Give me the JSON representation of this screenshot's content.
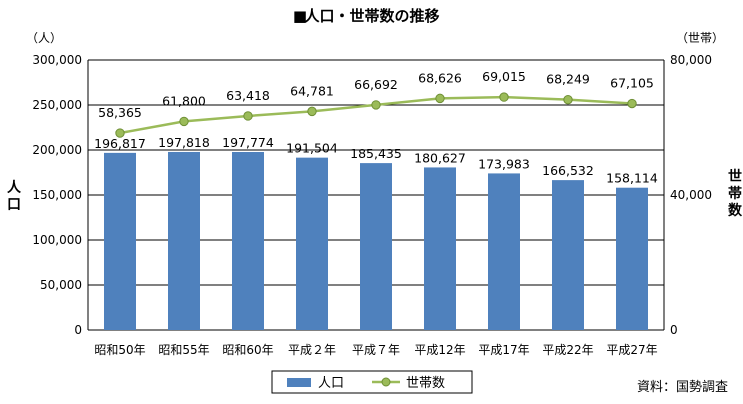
{
  "chart_data": {
    "type": "bar",
    "title_marker": "■",
    "title": "人口・世帯数の推移",
    "categories": [
      "昭和50年",
      "昭和55年",
      "昭和60年",
      "平成２年",
      "平成７年",
      "平成12年",
      "平成17年",
      "平成22年",
      "平成27年"
    ],
    "left_axis": {
      "unit": "（人）",
      "label": "人口",
      "ylim": [
        0,
        300000
      ],
      "ticks": [
        "0",
        "50,000",
        "100,000",
        "150,000",
        "200,000",
        "250,000",
        "300,000"
      ]
    },
    "right_axis": {
      "unit": "（世帯）",
      "label": "世帯数",
      "ylim": [
        0,
        80000
      ],
      "ticks": [
        "0",
        "40,000",
        "80,000"
      ]
    },
    "series": [
      {
        "name": "人口",
        "type": "bar",
        "axis": "left",
        "color": "#4f81bd",
        "values": [
          196817,
          197818,
          197774,
          191504,
          185435,
          180627,
          173983,
          166532,
          158114
        ],
        "labels": [
          "196,817",
          "197,818",
          "197,774",
          "191,504",
          "185,435",
          "180,627",
          "173,983",
          "166,532",
          "158,114"
        ]
      },
      {
        "name": "世帯数",
        "type": "line",
        "axis": "right",
        "color": "#9bbb59",
        "values": [
          58365,
          61800,
          63418,
          64781,
          66692,
          68626,
          69015,
          68249,
          67105
        ],
        "labels": [
          "58,365",
          "61,800",
          "63,418",
          "64,781",
          "66,692",
          "68,626",
          "69,015",
          "68,249",
          "67,105"
        ]
      }
    ],
    "grid": true,
    "legend": "bottom",
    "source": "資料：国勢調査"
  }
}
